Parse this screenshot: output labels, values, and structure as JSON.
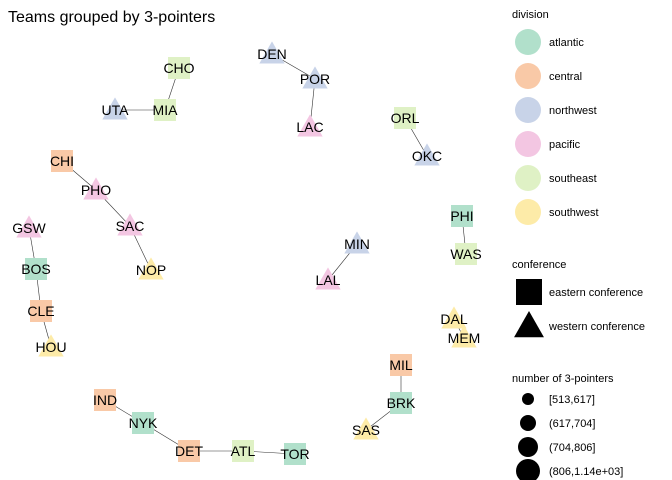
{
  "chart_data": {
    "type": "network",
    "title": "Teams grouped by 3-pointers",
    "nodes": [
      {
        "id": "DEN",
        "division": "northwest",
        "conference": "western conference"
      },
      {
        "id": "POR",
        "division": "northwest",
        "conference": "western conference"
      },
      {
        "id": "LAC",
        "division": "pacific",
        "conference": "western conference"
      },
      {
        "id": "CHO",
        "division": "southeast",
        "conference": "eastern conference"
      },
      {
        "id": "MIA",
        "division": "southeast",
        "conference": "eastern conference"
      },
      {
        "id": "UTA",
        "division": "northwest",
        "conference": "western conference"
      },
      {
        "id": "ORL",
        "division": "southeast",
        "conference": "eastern conference"
      },
      {
        "id": "OKC",
        "division": "northwest",
        "conference": "western conference"
      },
      {
        "id": "CHI",
        "division": "central",
        "conference": "eastern conference"
      },
      {
        "id": "PHO",
        "division": "pacific",
        "conference": "western conference"
      },
      {
        "id": "SAC",
        "division": "pacific",
        "conference": "western conference"
      },
      {
        "id": "NOP",
        "division": "southwest",
        "conference": "western conference"
      },
      {
        "id": "GSW",
        "division": "pacific",
        "conference": "western conference"
      },
      {
        "id": "BOS",
        "division": "atlantic",
        "conference": "eastern conference"
      },
      {
        "id": "CLE",
        "division": "central",
        "conference": "eastern conference"
      },
      {
        "id": "HOU",
        "division": "southwest",
        "conference": "western conference"
      },
      {
        "id": "PHI",
        "division": "atlantic",
        "conference": "eastern conference"
      },
      {
        "id": "WAS",
        "division": "southeast",
        "conference": "eastern conference"
      },
      {
        "id": "MIN",
        "division": "northwest",
        "conference": "western conference"
      },
      {
        "id": "LAL",
        "division": "pacific",
        "conference": "western conference"
      },
      {
        "id": "DAL",
        "division": "southwest",
        "conference": "western conference"
      },
      {
        "id": "MEM",
        "division": "southwest",
        "conference": "western conference"
      },
      {
        "id": "MIL",
        "division": "central",
        "conference": "eastern conference"
      },
      {
        "id": "BRK",
        "division": "atlantic",
        "conference": "eastern conference"
      },
      {
        "id": "SAS",
        "division": "southwest",
        "conference": "western conference"
      },
      {
        "id": "IND",
        "division": "central",
        "conference": "eastern conference"
      },
      {
        "id": "NYK",
        "division": "atlantic",
        "conference": "eastern conference"
      },
      {
        "id": "DET",
        "division": "central",
        "conference": "eastern conference"
      },
      {
        "id": "ATL",
        "division": "southeast",
        "conference": "eastern conference"
      },
      {
        "id": "TOR",
        "division": "atlantic",
        "conference": "eastern conference"
      }
    ],
    "edges": [
      [
        "DEN",
        "POR"
      ],
      [
        "POR",
        "LAC"
      ],
      [
        "CHO",
        "MIA"
      ],
      [
        "MIA",
        "UTA"
      ],
      [
        "ORL",
        "OKC"
      ],
      [
        "CHI",
        "PHO"
      ],
      [
        "PHO",
        "SAC"
      ],
      [
        "SAC",
        "NOP"
      ],
      [
        "GSW",
        "BOS"
      ],
      [
        "BOS",
        "CLE"
      ],
      [
        "CLE",
        "HOU"
      ],
      [
        "PHI",
        "WAS"
      ],
      [
        "MIN",
        "LAL"
      ],
      [
        "DAL",
        "MEM"
      ],
      [
        "MIL",
        "BRK"
      ],
      [
        "BRK",
        "SAS"
      ],
      [
        "IND",
        "NYK"
      ],
      [
        "NYK",
        "DET"
      ],
      [
        "DET",
        "ATL"
      ],
      [
        "ATL",
        "TOR"
      ]
    ],
    "legends": {
      "division": {
        "title": "division",
        "entries": [
          {
            "label": "atlantic",
            "color": "#B1E0CB"
          },
          {
            "label": "central",
            "color": "#F9C9A7"
          },
          {
            "label": "northwest",
            "color": "#C8D3E8"
          },
          {
            "label": "pacific",
            "color": "#F3C6E2"
          },
          {
            "label": "southeast",
            "color": "#DFF1C5"
          },
          {
            "label": "southwest",
            "color": "#FDEBA8"
          }
        ]
      },
      "conference": {
        "title": "conference",
        "entries": [
          {
            "label": "eastern conference",
            "shape": "square"
          },
          {
            "label": "western conference",
            "shape": "triangle"
          }
        ]
      },
      "size": {
        "title": "number of 3-pointers",
        "entries": [
          {
            "label": "[513,617]"
          },
          {
            "label": "(617,704]"
          },
          {
            "label": "(704,806]"
          },
          {
            "label": "(806,1.14e+03]"
          }
        ]
      }
    }
  }
}
